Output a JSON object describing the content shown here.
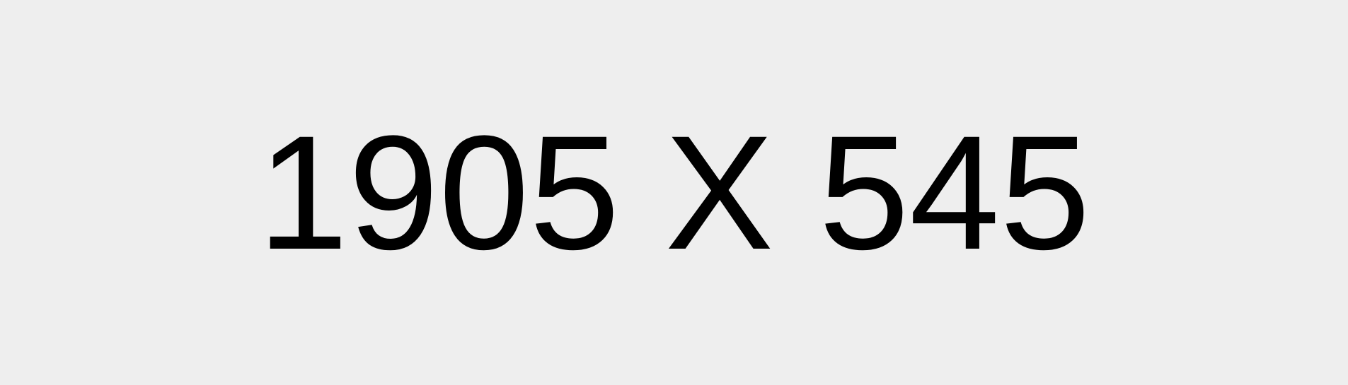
{
  "placeholder": {
    "text": "1905 X 545",
    "background_color": "#eeeeee",
    "text_color": "#000000"
  }
}
